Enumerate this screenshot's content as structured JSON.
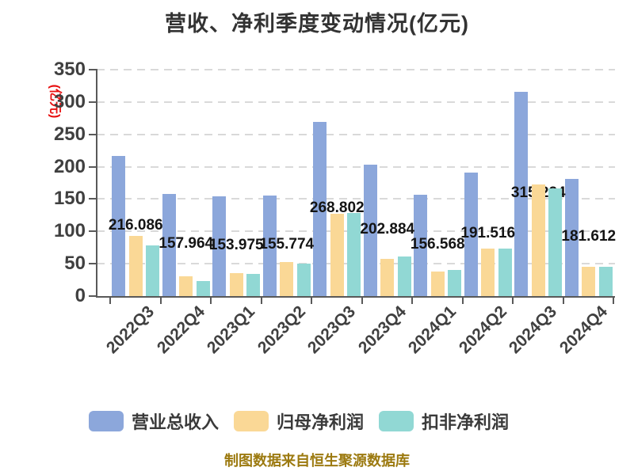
{
  "title": "营收、净利季度变动情况(亿元)",
  "y_axis_unit": "(亿元)",
  "footer": "制图数据来自恒生聚源数据库",
  "colors": {
    "revenue_bar": "#8ca7db",
    "net_profit_bar": "#fad896",
    "deducted_profit_bar": "#91d8d4",
    "axis": "#595959",
    "gridline": "#d9d9d9",
    "title_text": "#333333",
    "tick_text": "#404040",
    "value_label_text": "#141414",
    "unit_text": "#e81010",
    "footer_text": "#9c7a10"
  },
  "chart_data": {
    "type": "bar",
    "title": "营收、净利季度变动情况(亿元)",
    "ylabel": "(亿元)",
    "categories": [
      "2022Q3",
      "2022Q4",
      "2023Q1",
      "2023Q2",
      "2023Q3",
      "2023Q4",
      "2024Q1",
      "2024Q2",
      "2024Q3",
      "2024Q4"
    ],
    "series": [
      {
        "name": "营业总收入",
        "color": "#8ca7db",
        "values": [
          216.086,
          157.964,
          153.975,
          155.774,
          268.802,
          202.884,
          156.568,
          191.516,
          315.224,
          181.612
        ],
        "labels": [
          "216.086",
          "157.964",
          "153.975",
          "155.774",
          "268.802",
          "202.884",
          "156.568",
          "191.516",
          "315.224",
          "181.612"
        ]
      },
      {
        "name": "归母净利润",
        "color": "#fad896",
        "values": [
          92.6,
          30.2,
          35.5,
          53.0,
          127.3,
          57.9,
          38.3,
          73.0,
          172.2,
          45.7
        ]
      },
      {
        "name": "扣非净利润",
        "color": "#91d8d4",
        "values": [
          78.3,
          23.3,
          34.3,
          50.5,
          128.5,
          60.8,
          40.8,
          73.2,
          166.1,
          45.7
        ]
      }
    ],
    "ylim": [
      0,
      350
    ],
    "y_ticks": [
      0,
      50,
      100,
      150,
      200,
      250,
      300,
      350
    ],
    "grid": true,
    "gridline_style": "dashed",
    "x_label_rotation": 45,
    "legend_position": "bottom",
    "value_labels_series": "营业总收入"
  }
}
